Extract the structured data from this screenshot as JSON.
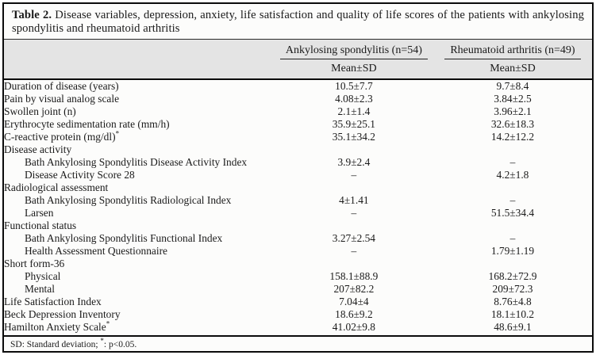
{
  "title": {
    "label": "Table 2.",
    "text": "Disease variables, depression, anxiety, life satisfaction and quality of life scores of the patients with ankylosing spondylitis and rheumatoid arthritis"
  },
  "header": {
    "groups": [
      {
        "label": "Ankylosing spondylitis (n=54)",
        "sub": "Mean±SD"
      },
      {
        "label": "Rheumatoid arthritis (n=49)",
        "sub": "Mean±SD"
      }
    ]
  },
  "rows": [
    {
      "label": "Duration of disease (years)",
      "section": false,
      "indent": false,
      "values": [
        "10.5±7.7",
        "9.7±8.4"
      ]
    },
    {
      "label": "Pain by visual analog scale",
      "section": false,
      "indent": false,
      "values": [
        "4.08±2.3",
        "3.84±2.5"
      ]
    },
    {
      "label": "Swollen joint (n)",
      "section": false,
      "indent": false,
      "values": [
        "2.1±1.4",
        "3.96±2.1"
      ]
    },
    {
      "label": "Erythrocyte sedimentation rate (mm/h)",
      "section": false,
      "indent": false,
      "values": [
        "35.9±25.1",
        "32.6±18.3"
      ]
    },
    {
      "label": "C-reactive protein (mg/dl)",
      "sup": "*",
      "section": false,
      "indent": false,
      "values": [
        "35.1±34.2",
        "14.2±12.2"
      ]
    },
    {
      "label": "Disease activity",
      "section": true,
      "indent": false,
      "values": [
        "",
        ""
      ]
    },
    {
      "label": "Bath Ankylosing Spondylitis Disease Activity Index",
      "section": false,
      "indent": true,
      "values": [
        "3.9±2.4",
        "–"
      ]
    },
    {
      "label": "Disease Activity Score 28",
      "section": false,
      "indent": true,
      "values": [
        "–",
        "4.2±1.8"
      ]
    },
    {
      "label": "Radiological assessment",
      "section": true,
      "indent": false,
      "values": [
        "",
        ""
      ]
    },
    {
      "label": "Bath Ankylosing Spondylitis Radiological Index",
      "section": false,
      "indent": true,
      "values": [
        "4±1.41",
        "–"
      ]
    },
    {
      "label": "Larsen",
      "section": false,
      "indent": true,
      "values": [
        "–",
        "51.5±34.4"
      ]
    },
    {
      "label": "Functional status",
      "section": true,
      "indent": false,
      "values": [
        "",
        ""
      ]
    },
    {
      "label": "Bath Ankylosing Spondylitis Functional Index",
      "section": false,
      "indent": true,
      "values": [
        "3.27±2.54",
        "–"
      ]
    },
    {
      "label": "Health Assessment Questionnaire",
      "section": false,
      "indent": true,
      "values": [
        "–",
        "1.79±1.19"
      ]
    },
    {
      "label": "Short form-36",
      "section": true,
      "indent": false,
      "values": [
        "",
        ""
      ]
    },
    {
      "label": "Physical",
      "section": false,
      "indent": true,
      "values": [
        "158.1±88.9",
        "168.2±72.9"
      ]
    },
    {
      "label": "Mental",
      "section": false,
      "indent": true,
      "values": [
        "207±82.2",
        "209±72.3"
      ]
    },
    {
      "label": "Life Satisfaction Index",
      "section": false,
      "indent": false,
      "values": [
        "7.04±4",
        "8.76±4.8"
      ]
    },
    {
      "label": "Beck Depression Inventory",
      "section": false,
      "indent": false,
      "values": [
        "18.6±9.2",
        "18.1±10.2"
      ]
    },
    {
      "label": "Hamilton Anxiety Scale",
      "sup": "*",
      "section": false,
      "indent": false,
      "values": [
        "41.02±9.8",
        "48.6±9.1"
      ]
    }
  ],
  "footnote": {
    "text1": "SD: Standard deviation; ",
    "star": "*",
    "text2": ": p<0.05."
  },
  "colors": {
    "header_bg": "#e4e4e4",
    "border": "#0b0b0b",
    "text": "#1a1a1a"
  }
}
